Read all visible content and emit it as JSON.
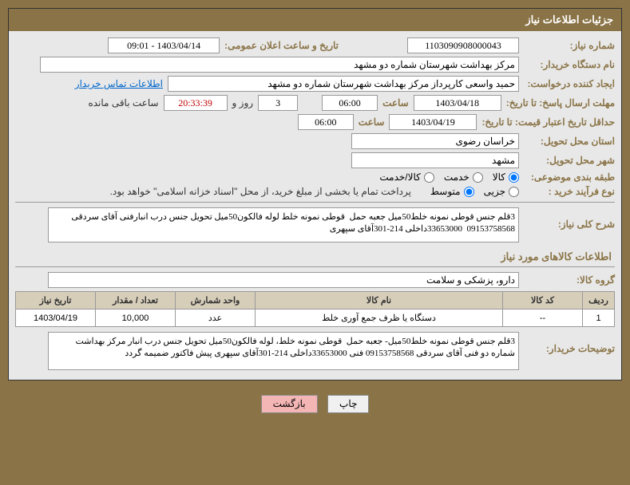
{
  "header": {
    "title": "جزئیات اطلاعات نیاز"
  },
  "fields": {
    "need_number_label": "شماره نیاز:",
    "need_number": "1103090908000043",
    "announce_label": "تاریخ و ساعت اعلان عمومی:",
    "announce_value": "1403/04/14 - 09:01",
    "buyer_label": "نام دستگاه خریدار:",
    "buyer_value": "مرکز بهداشت شهرستان شماره دو مشهد",
    "creator_label": "ایجاد کننده درخواست:",
    "creator_value": "حمید واسعی کارپرداز مرکز بهداشت شهرستان شماره دو مشهد",
    "contact_link": "اطلاعات تماس خریدار",
    "deadline_label": "مهلت ارسال پاسخ: تا تاریخ:",
    "deadline_date": "1403/04/18",
    "time_label": "ساعت",
    "deadline_time": "06:00",
    "days_label": "روز و",
    "days_value": "3",
    "countdown": "20:33:39",
    "remaining_label": "ساعت باقی مانده",
    "validity_label": "حداقل تاریخ اعتبار قیمت: تا تاریخ:",
    "validity_date": "1403/04/19",
    "validity_time": "06:00",
    "province_label": "استان محل تحویل:",
    "province_value": "خراسان رضوی",
    "city_label": "شهر محل تحویل:",
    "city_value": "مشهد",
    "category_label": "طبقه بندی موضوعی:",
    "cat_goods": "کالا",
    "cat_service": "خدمت",
    "cat_both": "کالا/خدمت",
    "purchase_type_label": "نوع فرآیند خرید :",
    "pt_small": "جزیی",
    "pt_medium": "متوسط",
    "payment_note": "پرداخت تمام یا بخشی از مبلغ خرید، از محل \"اسناد خزانه اسلامی\" خواهد بود.",
    "description_label": "شرح کلی نیاز:",
    "description_text": "3قلم جنس قوطی نمونه خلط50میل جعبه حمل  قوطی نمونه خلط لوله فالکون50میل تحویل جنس درب انبارفنی آقای سردقی 09153758568  33653000داخلی 214-301آقای سپهری",
    "goods_header": "اطلاعات کالاهای مورد نیاز",
    "group_label": "گروه کالا:",
    "group_value": "دارو، پزشکی و سلامت",
    "buyer_notes_label": "توضیحات خریدار:",
    "buyer_notes_text": "3قلم جنس قوطی نمونه خلط50میل- جعبه حمل  قوطی نمونه خلط، لوله فالکون50میل تحویل جنس درب انبار مرکز بهداشت شماره دو فنی آقای سردقی 09153758568 فنی 33653000داخلی 214-301آقای سپهری پیش فاکتور ضمیمه گردد"
  },
  "table": {
    "headers": {
      "row": "ردیف",
      "code": "کد کالا",
      "name": "نام کالا",
      "unit": "واحد شمارش",
      "qty": "تعداد / مقدار",
      "date": "تاریخ نیاز"
    },
    "rows": [
      {
        "row": "1",
        "code": "--",
        "name": "دستگاه یا ظرف جمع آوری خلط",
        "unit": "عدد",
        "qty": "10,000",
        "date": "1403/04/19"
      }
    ]
  },
  "buttons": {
    "print": "چاپ",
    "back": "بازگشت"
  }
}
